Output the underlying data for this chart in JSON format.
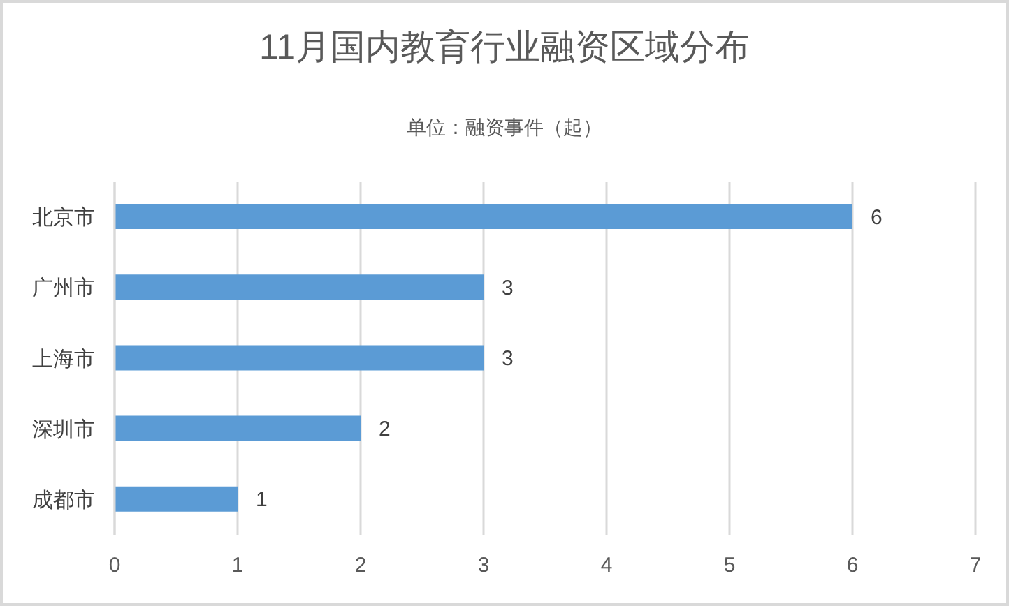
{
  "chart_data": {
    "type": "bar",
    "orientation": "horizontal",
    "title": "11月国内教育行业融资区域分布",
    "subtitle": "单位：融资事件（起）",
    "categories": [
      "北京市",
      "广州市",
      "上海市",
      "深圳市",
      "成都市"
    ],
    "values": [
      6,
      3,
      3,
      2,
      1
    ],
    "color": "#5b9bd5",
    "xlim": [
      0,
      7
    ],
    "xticks": [
      0,
      1,
      2,
      3,
      4,
      5,
      6,
      7
    ],
    "grid": "x",
    "data_labels": true
  }
}
